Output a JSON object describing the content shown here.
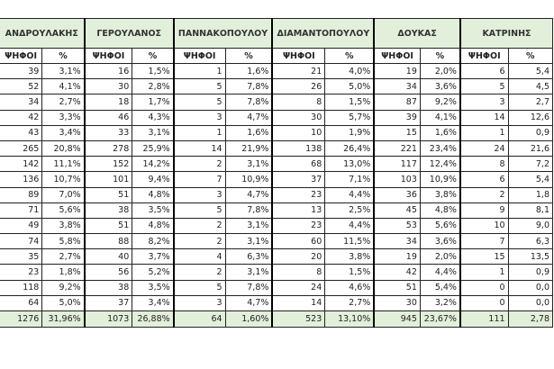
{
  "sub_headers": {
    "votes": "ΨΗΦΟΙ",
    "pct": "%"
  },
  "candidates": [
    {
      "name": "ΑΝΔΡΟΥΛΑΚΗΣ",
      "votes": [
        "39",
        "52",
        "34",
        "42",
        "43",
        "265",
        "142",
        "136",
        "89",
        "71",
        "49",
        "74",
        "35",
        "23",
        "118",
        "64"
      ],
      "pct": [
        "3,1%",
        "4,1%",
        "2,7%",
        "3,3%",
        "3,4%",
        "20,8%",
        "11,1%",
        "10,7%",
        "7,0%",
        "5,6%",
        "3,8%",
        "5,8%",
        "2,7%",
        "1,8%",
        "9,2%",
        "5,0%"
      ],
      "total_votes": "1276",
      "total_pct": "31,96%"
    },
    {
      "name": "ΓΕΡΟΥΛΑΝΟΣ",
      "votes": [
        "16",
        "30",
        "18",
        "46",
        "33",
        "278",
        "152",
        "101",
        "51",
        "38",
        "51",
        "88",
        "40",
        "56",
        "38",
        "37"
      ],
      "pct": [
        "1,5%",
        "2,8%",
        "1,7%",
        "4,3%",
        "3,1%",
        "25,9%",
        "14,2%",
        "9,4%",
        "4,8%",
        "3,5%",
        "4,8%",
        "8,2%",
        "3,7%",
        "5,2%",
        "3,5%",
        "3,4%"
      ],
      "total_votes": "1073",
      "total_pct": "26,88%"
    },
    {
      "name": "ΠΑΝΝΑΚΟΠΟΥΛΟΥ",
      "votes": [
        "1",
        "5",
        "5",
        "3",
        "1",
        "14",
        "2",
        "7",
        "3",
        "5",
        "2",
        "2",
        "4",
        "2",
        "5",
        "3"
      ],
      "pct": [
        "1,6%",
        "7,8%",
        "7,8%",
        "4,7%",
        "1,6%",
        "21,9%",
        "3,1%",
        "10,9%",
        "4,7%",
        "7,8%",
        "3,1%",
        "3,1%",
        "6,3%",
        "3,1%",
        "7,8%",
        "4,7%"
      ],
      "total_votes": "64",
      "total_pct": "1,60%"
    },
    {
      "name": "ΔΙΑΜΑΝΤΟΠΟΥΛΟΥ",
      "votes": [
        "21",
        "26",
        "8",
        "30",
        "10",
        "138",
        "68",
        "37",
        "23",
        "13",
        "23",
        "60",
        "20",
        "8",
        "24",
        "14"
      ],
      "pct": [
        "4,0%",
        "5,0%",
        "1,5%",
        "5,7%",
        "1,9%",
        "26,4%",
        "13,0%",
        "7,1%",
        "4,4%",
        "2,5%",
        "4,4%",
        "11,5%",
        "3,8%",
        "1,5%",
        "4,6%",
        "2,7%"
      ],
      "total_votes": "523",
      "total_pct": "13,10%"
    },
    {
      "name": "ΔΟΥΚΑΣ",
      "votes": [
        "19",
        "34",
        "87",
        "39",
        "15",
        "221",
        "117",
        "103",
        "36",
        "45",
        "53",
        "34",
        "19",
        "42",
        "51",
        "30"
      ],
      "pct": [
        "2,0%",
        "3,6%",
        "9,2%",
        "4,1%",
        "1,6%",
        "23,4%",
        "12,4%",
        "10,9%",
        "3,8%",
        "4,8%",
        "5,6%",
        "3,6%",
        "2,0%",
        "4,4%",
        "5,4%",
        "3,2%"
      ],
      "total_votes": "945",
      "total_pct": "23,67%"
    },
    {
      "name": "ΚΑΤΡΙΝΗΣ",
      "votes": [
        "6",
        "5",
        "3",
        "14",
        "1",
        "24",
        "8",
        "6",
        "2",
        "9",
        "10",
        "7",
        "15",
        "1",
        "0",
        "0"
      ],
      "pct": [
        "5,4",
        "4,5",
        "2,7",
        "12,6",
        "0,9",
        "21,6",
        "7,2",
        "5,4",
        "1,8",
        "8,1",
        "9,0",
        "6,3",
        "13,5",
        "0,9",
        "0,0",
        "0,0"
      ],
      "total_votes": "111",
      "total_pct": "2,78"
    }
  ]
}
